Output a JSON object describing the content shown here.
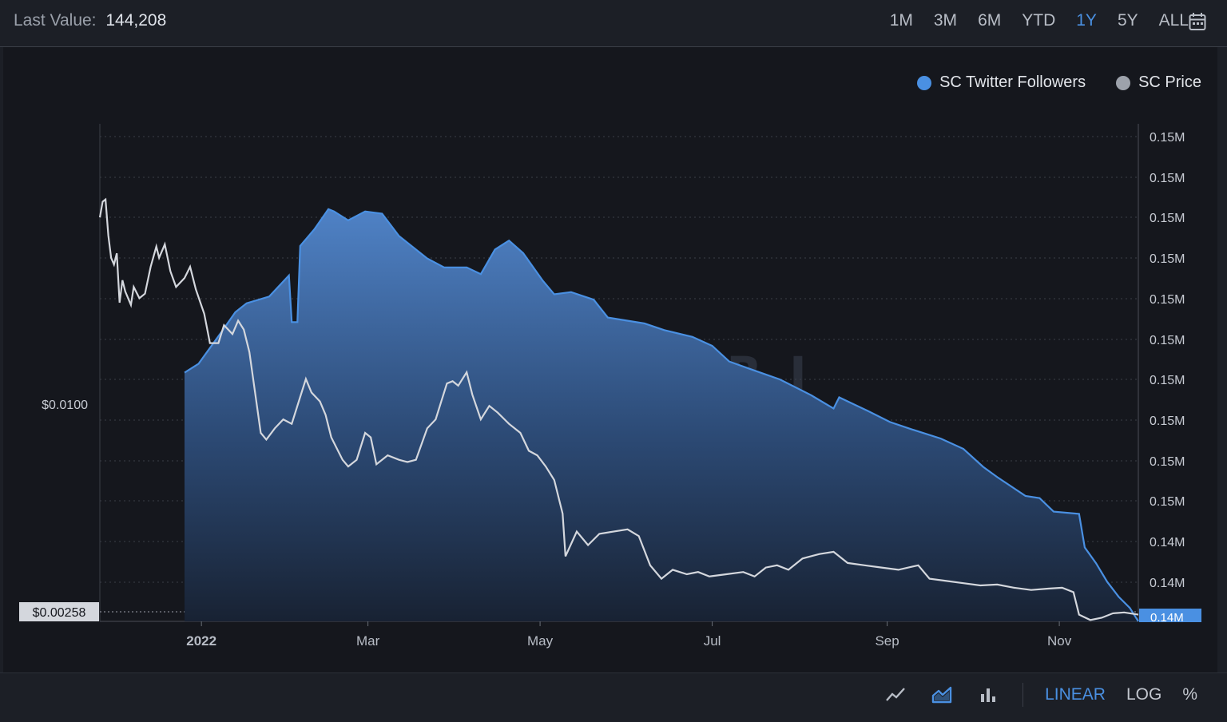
{
  "header": {
    "last_value_label": "Last Value:",
    "last_value": "144,208",
    "ranges": [
      "1M",
      "3M",
      "6M",
      "YTD",
      "1Y",
      "5Y",
      "ALL"
    ],
    "active_range": "1Y",
    "calendar_icon": "calendar-icon"
  },
  "legend": {
    "items": [
      {
        "label": "SC Twitter Followers",
        "color": "#4a90e2"
      },
      {
        "label": "SC Price",
        "color": "#9da2ab"
      }
    ]
  },
  "watermark": "MESSARI",
  "chart_data": {
    "type": "area",
    "x_ticks": [
      "2022",
      "Mar",
      "May",
      "Jul",
      "Sep",
      "Nov"
    ],
    "left_axis": {
      "ticks": [
        "$0.0100"
      ],
      "current_price_label": "$0.00258"
    },
    "right_axis": {
      "ticks": [
        "0.15M",
        "0.15M",
        "0.15M",
        "0.15M",
        "0.15M",
        "0.15M",
        "0.15M",
        "0.15M",
        "0.15M",
        "0.15M",
        "0.14M",
        "0.14M"
      ],
      "current_label": "0.14M"
    },
    "grid": true,
    "legend_position": "top-right",
    "series": [
      {
        "name": "SC Twitter Followers",
        "color": "#4a90e2",
        "axis": "right",
        "points": [
          [
            "2021-12-26",
            0.555
          ],
          [
            "2021-12-31",
            0.575
          ],
          [
            "2022-01-08",
            0.645
          ],
          [
            "2022-01-13",
            0.69
          ],
          [
            "2022-01-17",
            0.71
          ],
          [
            "2022-01-25",
            0.725
          ],
          [
            "2022-02-01",
            0.772
          ],
          [
            "2022-02-02",
            0.668
          ],
          [
            "2022-02-04",
            0.668
          ],
          [
            "2022-02-05",
            0.838
          ],
          [
            "2022-02-10",
            0.875
          ],
          [
            "2022-02-15",
            0.92
          ],
          [
            "2022-02-17",
            0.915
          ],
          [
            "2022-02-22",
            0.895
          ],
          [
            "2022-02-28",
            0.915
          ],
          [
            "2022-03-06",
            0.91
          ],
          [
            "2022-03-12",
            0.86
          ],
          [
            "2022-03-22",
            0.81
          ],
          [
            "2022-03-28",
            0.79
          ],
          [
            "2022-04-05",
            0.79
          ],
          [
            "2022-04-10",
            0.775
          ],
          [
            "2022-04-15",
            0.83
          ],
          [
            "2022-04-20",
            0.85
          ],
          [
            "2022-04-25",
            0.822
          ],
          [
            "2022-05-02",
            0.76
          ],
          [
            "2022-05-06",
            0.73
          ],
          [
            "2022-05-12",
            0.735
          ],
          [
            "2022-05-20",
            0.718
          ],
          [
            "2022-05-25",
            0.678
          ],
          [
            "2022-05-31",
            0.672
          ],
          [
            "2022-06-07",
            0.665
          ],
          [
            "2022-06-14",
            0.65
          ],
          [
            "2022-06-24",
            0.635
          ],
          [
            "2022-07-01",
            0.615
          ],
          [
            "2022-07-07",
            0.58
          ],
          [
            "2022-07-15",
            0.562
          ],
          [
            "2022-07-25",
            0.54
          ],
          [
            "2022-08-05",
            0.505
          ],
          [
            "2022-08-13",
            0.475
          ],
          [
            "2022-08-15",
            0.5
          ],
          [
            "2022-08-25",
            0.47
          ],
          [
            "2022-09-02",
            0.445
          ],
          [
            "2022-09-10",
            0.428
          ],
          [
            "2022-09-20",
            0.408
          ],
          [
            "2022-09-28",
            0.385
          ],
          [
            "2022-10-05",
            0.345
          ],
          [
            "2022-10-10",
            0.322
          ],
          [
            "2022-10-20",
            0.28
          ],
          [
            "2022-10-25",
            0.275
          ],
          [
            "2022-10-30",
            0.245
          ],
          [
            "2022-11-08",
            0.24
          ],
          [
            "2022-11-10",
            0.165
          ],
          [
            "2022-11-14",
            0.13
          ],
          [
            "2022-11-18",
            0.088
          ],
          [
            "2022-11-22",
            0.055
          ],
          [
            "2022-11-26",
            0.03
          ],
          [
            "2022-11-29",
            0.0
          ]
        ]
      },
      {
        "name": "SC Price",
        "color": "#d4d7dd",
        "axis": "left",
        "points": [
          [
            "2021-11-26",
            0.9
          ],
          [
            "2021-11-27",
            0.935
          ],
          [
            "2021-11-28",
            0.94
          ],
          [
            "2021-11-29",
            0.86
          ],
          [
            "2021-11-30",
            0.81
          ],
          [
            "2021-12-01",
            0.795
          ],
          [
            "2021-12-02",
            0.82
          ],
          [
            "2021-12-03",
            0.71
          ],
          [
            "2021-12-04",
            0.76
          ],
          [
            "2021-12-05",
            0.735
          ],
          [
            "2021-12-07",
            0.705
          ],
          [
            "2021-12-08",
            0.745
          ],
          [
            "2021-12-10",
            0.72
          ],
          [
            "2021-12-12",
            0.73
          ],
          [
            "2021-12-14",
            0.79
          ],
          [
            "2021-12-16",
            0.835
          ],
          [
            "2021-12-17",
            0.81
          ],
          [
            "2021-12-19",
            0.84
          ],
          [
            "2021-12-21",
            0.78
          ],
          [
            "2021-12-23",
            0.745
          ],
          [
            "2021-12-26",
            0.765
          ],
          [
            "2021-12-28",
            0.79
          ],
          [
            "2021-12-30",
            0.74
          ],
          [
            "2022-01-02",
            0.685
          ],
          [
            "2022-01-04",
            0.62
          ],
          [
            "2022-01-07",
            0.62
          ],
          [
            "2022-01-09",
            0.66
          ],
          [
            "2022-01-12",
            0.64
          ],
          [
            "2022-01-14",
            0.67
          ],
          [
            "2022-01-16",
            0.65
          ],
          [
            "2022-01-18",
            0.6
          ],
          [
            "2022-01-20",
            0.51
          ],
          [
            "2022-01-22",
            0.42
          ],
          [
            "2022-01-24",
            0.405
          ],
          [
            "2022-01-27",
            0.43
          ],
          [
            "2022-01-30",
            0.45
          ],
          [
            "2022-02-02",
            0.44
          ],
          [
            "2022-02-05",
            0.5
          ],
          [
            "2022-02-07",
            0.54
          ],
          [
            "2022-02-09",
            0.51
          ],
          [
            "2022-02-12",
            0.49
          ],
          [
            "2022-02-14",
            0.46
          ],
          [
            "2022-02-16",
            0.41
          ],
          [
            "2022-02-20",
            0.36
          ],
          [
            "2022-02-22",
            0.345
          ],
          [
            "2022-02-25",
            0.36
          ],
          [
            "2022-02-28",
            0.42
          ],
          [
            "2022-03-02",
            0.41
          ],
          [
            "2022-03-04",
            0.35
          ],
          [
            "2022-03-08",
            0.37
          ],
          [
            "2022-03-12",
            0.36
          ],
          [
            "2022-03-15",
            0.355
          ],
          [
            "2022-03-18",
            0.36
          ],
          [
            "2022-03-22",
            0.43
          ],
          [
            "2022-03-25",
            0.45
          ],
          [
            "2022-03-27",
            0.49
          ],
          [
            "2022-03-29",
            0.53
          ],
          [
            "2022-03-31",
            0.535
          ],
          [
            "2022-04-02",
            0.525
          ],
          [
            "2022-04-05",
            0.555
          ],
          [
            "2022-04-07",
            0.505
          ],
          [
            "2022-04-10",
            0.45
          ],
          [
            "2022-04-13",
            0.48
          ],
          [
            "2022-04-16",
            0.465
          ],
          [
            "2022-04-20",
            0.44
          ],
          [
            "2022-04-24",
            0.42
          ],
          [
            "2022-04-27",
            0.38
          ],
          [
            "2022-04-30",
            0.37
          ],
          [
            "2022-05-03",
            0.345
          ],
          [
            "2022-05-06",
            0.315
          ],
          [
            "2022-05-09",
            0.24
          ],
          [
            "2022-05-10",
            0.145
          ],
          [
            "2022-05-14",
            0.2
          ],
          [
            "2022-05-18",
            0.17
          ],
          [
            "2022-05-22",
            0.195
          ],
          [
            "2022-05-27",
            0.2
          ],
          [
            "2022-06-01",
            0.205
          ],
          [
            "2022-06-05",
            0.19
          ],
          [
            "2022-06-09",
            0.125
          ],
          [
            "2022-06-13",
            0.095
          ],
          [
            "2022-06-17",
            0.115
          ],
          [
            "2022-06-22",
            0.105
          ],
          [
            "2022-06-26",
            0.11
          ],
          [
            "2022-06-30",
            0.1
          ],
          [
            "2022-07-06",
            0.105
          ],
          [
            "2022-07-12",
            0.11
          ],
          [
            "2022-07-16",
            0.1
          ],
          [
            "2022-07-20",
            0.12
          ],
          [
            "2022-07-24",
            0.125
          ],
          [
            "2022-07-28",
            0.115
          ],
          [
            "2022-08-02",
            0.14
          ],
          [
            "2022-08-08",
            0.15
          ],
          [
            "2022-08-13",
            0.155
          ],
          [
            "2022-08-18",
            0.13
          ],
          [
            "2022-08-24",
            0.125
          ],
          [
            "2022-08-30",
            0.12
          ],
          [
            "2022-09-05",
            0.115
          ],
          [
            "2022-09-12",
            0.125
          ],
          [
            "2022-09-16",
            0.095
          ],
          [
            "2022-09-22",
            0.09
          ],
          [
            "2022-09-28",
            0.085
          ],
          [
            "2022-10-04",
            0.08
          ],
          [
            "2022-10-10",
            0.082
          ],
          [
            "2022-10-16",
            0.075
          ],
          [
            "2022-10-22",
            0.07
          ],
          [
            "2022-10-28",
            0.073
          ],
          [
            "2022-11-02",
            0.075
          ],
          [
            "2022-11-06",
            0.065
          ],
          [
            "2022-11-08",
            0.015
          ],
          [
            "2022-11-12",
            0.003
          ],
          [
            "2022-11-16",
            0.008
          ],
          [
            "2022-11-20",
            0.018
          ],
          [
            "2022-11-24",
            0.02
          ],
          [
            "2022-11-29",
            0.015
          ]
        ]
      }
    ]
  },
  "footer": {
    "chart_type_icons": [
      "line-chart-icon",
      "area-chart-icon",
      "bar-chart-icon"
    ],
    "scales": [
      "LINEAR",
      "LOG",
      "%"
    ],
    "active_scale": "LINEAR"
  }
}
